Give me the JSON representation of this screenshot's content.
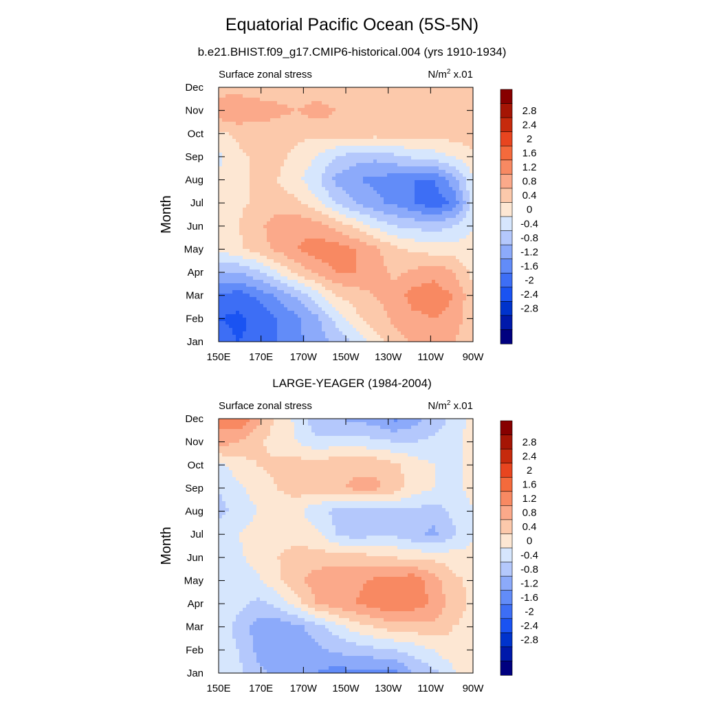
{
  "figure": {
    "title": "Equatorial Pacific Ocean (5S-5N)",
    "subtitle": "b.e21.BHIST.f09_g17.CMIP6-historical.004 (yrs 1910-1934)"
  },
  "colors": {
    "levels": [
      "#00007f",
      "#0019aa",
      "#0033cc",
      "#1a53f2",
      "#3d6ef5",
      "#628cf8",
      "#8caafa",
      "#b4c8fc",
      "#d6e6fd",
      "#fde7d3",
      "#fcc9ab",
      "#fba98a",
      "#f88962",
      "#f46a3c",
      "#e8451f",
      "#c62a0d",
      "#a51505",
      "#870000"
    ],
    "level_values": [
      -2.8,
      -2.4,
      -2,
      -1.6,
      -1.2,
      -0.8,
      -0.4,
      0,
      0.4,
      0.8,
      1.2,
      1.6,
      2,
      2.4,
      2.8
    ]
  },
  "chart_data": [
    {
      "type": "heatmap",
      "title": "b.e21.BHIST.f09_g17.CMIP6-historical.004 (yrs 1910-1934)",
      "left_label": "Surface zonal stress",
      "right_label_base": "N/m",
      "right_label_sup": "2",
      "right_label_tail": " x.01",
      "ylabel": "Month",
      "x_tick_labels": [
        "150E",
        "170E",
        "170W",
        "150W",
        "130W",
        "110W",
        "90W"
      ],
      "y_tick_labels": [
        "Jan",
        "Feb",
        "Mar",
        "Apr",
        "May",
        "Jun",
        "Jul",
        "Aug",
        "Sep",
        "Oct",
        "Nov",
        "Dec"
      ],
      "colorbar_labels": [
        "2.8",
        "2.4",
        "2",
        "1.6",
        "1.2",
        "0.8",
        "0.4",
        "0",
        "-0.4",
        "-0.8",
        "-1.2",
        "-1.6",
        "-2",
        "-2.4",
        "-2.8"
      ],
      "lon_range": [
        150,
        270
      ],
      "month_range": [
        1,
        12
      ],
      "values": [
        [
          -1.8,
          -2.0,
          -1.9,
          -1.6,
          -1.3,
          -1.0,
          -0.7,
          -0.3,
          0.2,
          0.6,
          0.9,
          1.0,
          0.8,
          0.4
        ],
        [
          -2.0,
          -2.1,
          -1.9,
          -1.6,
          -1.3,
          -0.9,
          -0.3,
          0.3,
          0.6,
          0.9,
          1.1,
          1.2,
          1.1,
          0.5
        ],
        [
          -1.6,
          -1.8,
          -1.5,
          -1.1,
          -0.7,
          -0.2,
          0.4,
          0.6,
          0.8,
          1.0,
          1.4,
          1.4,
          1.2,
          0.5
        ],
        [
          -0.8,
          -0.8,
          -0.5,
          0.0,
          0.5,
          0.9,
          1.2,
          1.2,
          1.0,
          0.7,
          0.9,
          1.1,
          0.8,
          0.3
        ],
        [
          0.1,
          0.3,
          0.6,
          0.9,
          1.2,
          1.4,
          1.4,
          1.2,
          0.9,
          0.5,
          0.3,
          0.2,
          0.2,
          0.1
        ],
        [
          0.2,
          0.4,
          0.7,
          1.0,
          1.1,
          1.0,
          0.7,
          0.3,
          -0.1,
          -0.4,
          -0.5,
          -0.6,
          -0.4,
          0.0
        ],
        [
          0.2,
          0.3,
          0.5,
          0.6,
          0.5,
          0.1,
          -0.4,
          -0.8,
          -1.1,
          -1.3,
          -1.6,
          -1.9,
          -1.5,
          -0.3
        ],
        [
          0.1,
          0.3,
          0.5,
          0.4,
          0.1,
          -0.3,
          -0.9,
          -1.2,
          -1.3,
          -1.4,
          -1.6,
          -1.6,
          -1.0,
          0.0
        ],
        [
          -0.1,
          0.3,
          0.5,
          0.5,
          0.3,
          0.0,
          -0.4,
          -0.6,
          -0.7,
          -0.5,
          -0.3,
          -0.2,
          0.0,
          0.3
        ],
        [
          0.3,
          0.5,
          0.6,
          0.6,
          0.5,
          0.5,
          0.6,
          0.6,
          0.6,
          0.6,
          0.6,
          0.6,
          0.6,
          0.6
        ],
        [
          1.1,
          1.2,
          1.0,
          0.9,
          0.8,
          1.0,
          0.8,
          0.7,
          0.6,
          0.6,
          0.6,
          0.6,
          0.5,
          0.5
        ],
        [
          0.6,
          0.6,
          0.6,
          0.6,
          0.5,
          0.5,
          0.5,
          0.5,
          0.5,
          0.5,
          0.5,
          0.6,
          0.7,
          0.6
        ]
      ]
    },
    {
      "type": "heatmap",
      "title": "LARGE-YEAGER (1984-2004)",
      "left_label": "Surface zonal stress",
      "right_label_base": "N/m",
      "right_label_sup": "2",
      "right_label_tail": " x.01",
      "ylabel": "Month",
      "x_tick_labels": [
        "150E",
        "170E",
        "170W",
        "150W",
        "130W",
        "110W",
        "90W"
      ],
      "y_tick_labels": [
        "Jan",
        "Feb",
        "Mar",
        "Apr",
        "May",
        "Jun",
        "Jul",
        "Aug",
        "Sep",
        "Oct",
        "Nov",
        "Dec"
      ],
      "colorbar_labels": [
        "2.8",
        "2.4",
        "2",
        "1.6",
        "1.2",
        "0.8",
        "0.4",
        "0",
        "-0.4",
        "-0.8",
        "-1.2",
        "-1.6",
        "-2",
        "-2.4",
        "-2.8"
      ],
      "lon_range": [
        150,
        270
      ],
      "month_range": [
        1,
        12
      ],
      "values": [
        [
          -0.2,
          -0.3,
          -0.7,
          -0.9,
          -1.0,
          -1.2,
          -1.4,
          -1.3,
          -1.4,
          -1.3,
          -0.8,
          -0.5,
          -0.1,
          0.3
        ],
        [
          -0.2,
          -0.4,
          -0.9,
          -1.0,
          -1.0,
          -0.9,
          -0.7,
          -0.6,
          -0.5,
          -0.4,
          -0.2,
          0.0,
          0.3,
          0.4
        ],
        [
          -0.2,
          -0.5,
          -1.0,
          -1.1,
          -0.9,
          -0.6,
          -0.2,
          0.2,
          0.4,
          0.6,
          0.6,
          0.7,
          0.4,
          0.3
        ],
        [
          -0.1,
          -0.3,
          -0.5,
          -0.3,
          0.2,
          0.8,
          1.0,
          1.2,
          1.4,
          1.6,
          1.4,
          1.1,
          0.6,
          0.3
        ],
        [
          -0.1,
          -0.2,
          -0.1,
          0.3,
          0.7,
          1.0,
          1.1,
          1.1,
          1.3,
          1.4,
          1.5,
          1.0,
          0.5,
          0.3
        ],
        [
          -0.1,
          -0.1,
          0.2,
          0.4,
          0.5,
          0.6,
          0.6,
          0.6,
          0.5,
          0.4,
          0.3,
          0.3,
          0.2,
          0.1
        ],
        [
          -0.2,
          0.0,
          0.2,
          0.3,
          0.3,
          0.1,
          -0.4,
          -0.6,
          -0.5,
          -0.5,
          -0.7,
          -0.9,
          -0.5,
          0.0
        ],
        [
          -0.5,
          -0.3,
          0.0,
          0.2,
          0.1,
          -0.3,
          -0.5,
          -0.6,
          -0.6,
          -0.5,
          -0.5,
          -0.6,
          -0.3,
          0.0
        ],
        [
          -0.4,
          -0.1,
          0.2,
          0.4,
          0.6,
          0.6,
          0.7,
          0.9,
          0.9,
          0.6,
          0.2,
          0.0,
          -0.1,
          0.1
        ],
        [
          -0.1,
          0.2,
          0.4,
          0.5,
          0.6,
          0.6,
          0.7,
          0.7,
          0.7,
          0.5,
          0.2,
          0.0,
          -0.2,
          0.2
        ],
        [
          1.0,
          0.8,
          0.5,
          0.2,
          0.0,
          -0.3,
          -0.2,
          -0.2,
          -0.3,
          -0.4,
          -0.4,
          -0.3,
          -0.2,
          0.3
        ],
        [
          1.4,
          1.6,
          0.9,
          0.3,
          -0.1,
          -0.7,
          -0.8,
          -0.9,
          -1.0,
          -1.3,
          -1.0,
          -0.6,
          -0.3,
          0.1
        ]
      ]
    }
  ]
}
